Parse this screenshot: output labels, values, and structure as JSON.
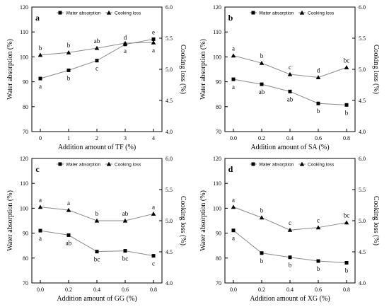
{
  "chart_data": [
    {
      "type": "line",
      "panel_label": "a",
      "xlabel": "Addition amount of TF (%)",
      "ylabel_left": "Water absorption (%)",
      "ylabel_right": "Cooking loss (%)",
      "x": [
        0,
        1,
        2,
        3,
        4
      ],
      "xticks": [
        "0",
        "1",
        "2",
        "3",
        "4"
      ],
      "xlim": [
        -0.3,
        4.3
      ],
      "ylim_left": [
        70,
        120
      ],
      "yticks_left": [
        "70",
        "80",
        "90",
        "100",
        "110",
        "120"
      ],
      "ylim_right": [
        4.0,
        6.0
      ],
      "yticks_right": [
        "4.0",
        "4.5",
        "5.0",
        "5.5",
        "6.0"
      ],
      "legend": "top",
      "series": [
        {
          "name": "Water absorption",
          "axis": "left",
          "marker": "square",
          "values": [
            91.3,
            94.6,
            98.5,
            105.0,
            107.1
          ],
          "letters": [
            "a",
            "b",
            "c",
            "d",
            "e"
          ],
          "letter_pos": [
            "below",
            "below",
            "below",
            "above",
            "above"
          ]
        },
        {
          "name": "Cooking loss",
          "axis": "right",
          "marker": "triangle",
          "values": [
            5.23,
            5.27,
            5.34,
            5.42,
            5.43
          ],
          "letters": [
            "b",
            "b",
            "ab",
            "a",
            "a"
          ],
          "letter_pos": [
            "above",
            "above",
            "above",
            "below",
            "below"
          ]
        }
      ]
    },
    {
      "type": "line",
      "panel_label": "b",
      "xlabel": "Addition amount of SA (%)",
      "ylabel_left": "Water absorption (%)",
      "ylabel_right": "Cooking loss (%)",
      "x": [
        0.0,
        0.2,
        0.4,
        0.6,
        0.8
      ],
      "xticks": [
        "0.0",
        "0.2",
        "0.4",
        "0.6",
        "0.8"
      ],
      "xlim": [
        -0.06,
        0.86
      ],
      "ylim_left": [
        70,
        120
      ],
      "yticks_left": [
        "70",
        "80",
        "90",
        "100",
        "110",
        "120"
      ],
      "ylim_right": [
        4.0,
        6.0
      ],
      "yticks_right": [
        "4.0",
        "4.5",
        "5.0",
        "5.5",
        "6.0"
      ],
      "legend": "top",
      "series": [
        {
          "name": "Water absorption",
          "axis": "left",
          "marker": "square",
          "values": [
            91.0,
            89.0,
            86.1,
            81.3,
            80.7
          ],
          "letters": [
            "a",
            "ab",
            "ab",
            "b",
            "b"
          ],
          "letter_pos": [
            "below",
            "below",
            "below",
            "below",
            "below"
          ]
        },
        {
          "name": "Cooking loss",
          "axis": "right",
          "marker": "triangle",
          "values": [
            5.22,
            5.1,
            4.92,
            4.87,
            5.03
          ],
          "letters": [
            "a",
            "b",
            "c",
            "d",
            "bc"
          ],
          "letter_pos": [
            "above",
            "above",
            "above",
            "above",
            "above"
          ]
        }
      ]
    },
    {
      "type": "line",
      "panel_label": "c",
      "xlabel": "Addition amount of GG (%)",
      "ylabel_left": "Water absorption (%)",
      "ylabel_right": "Cooking loss (%)",
      "x": [
        0.0,
        0.2,
        0.4,
        0.6,
        0.8
      ],
      "xticks": [
        "0.0",
        "0.2",
        "0.4",
        "0.6",
        "0.8"
      ],
      "xlim": [
        -0.06,
        0.86
      ],
      "ylim_left": [
        70,
        120
      ],
      "yticks_left": [
        "70",
        "80",
        "90",
        "100",
        "110",
        "120"
      ],
      "ylim_right": [
        4.0,
        6.0
      ],
      "yticks_right": [
        "4.0",
        "4.5",
        "5.0",
        "5.5",
        "6.0"
      ],
      "legend": "top",
      "series": [
        {
          "name": "Water absorption",
          "axis": "left",
          "marker": "square",
          "values": [
            91.0,
            89.2,
            82.6,
            82.9,
            80.9
          ],
          "letters": [
            "a",
            "ab",
            "bc",
            "bc",
            "c"
          ],
          "letter_pos": [
            "below",
            "below",
            "below",
            "below",
            "below"
          ]
        },
        {
          "name": "Cooking loss",
          "axis": "right",
          "marker": "triangle",
          "values": [
            5.22,
            5.17,
            5.0,
            5.0,
            5.11
          ],
          "letters": [
            "a",
            "a",
            "b",
            "ab",
            "a"
          ],
          "letter_pos": [
            "above",
            "above",
            "above",
            "above",
            "above"
          ]
        }
      ]
    },
    {
      "type": "line",
      "panel_label": "d",
      "xlabel": "Addition amount of XG (%)",
      "ylabel_left": "Water absorption (%)",
      "ylabel_right": "Cooking loss (%)",
      "x": [
        0.0,
        0.2,
        0.4,
        0.6,
        0.8
      ],
      "xticks": [
        "0.0",
        "0.2",
        "0.4",
        "0.6",
        "0.8"
      ],
      "xlim": [
        -0.06,
        0.86
      ],
      "ylim_left": [
        70,
        120
      ],
      "yticks_left": [
        "70",
        "80",
        "90",
        "100",
        "110",
        "120"
      ],
      "ylim_right": [
        4.0,
        6.0
      ],
      "yticks_right": [
        "4.0",
        "4.5",
        "5.0",
        "5.5",
        "6.0"
      ],
      "legend": "top",
      "series": [
        {
          "name": "Water absorption",
          "axis": "left",
          "marker": "square",
          "values": [
            91.1,
            82.0,
            80.3,
            78.8,
            78.1
          ],
          "letters": [
            "a",
            "b",
            "b",
            "b",
            "b"
          ],
          "letter_pos": [
            "below",
            "below",
            "below",
            "below",
            "below"
          ]
        },
        {
          "name": "Cooking loss",
          "axis": "right",
          "marker": "triangle",
          "values": [
            5.22,
            5.05,
            4.85,
            4.89,
            4.97
          ],
          "letters": [
            "a",
            "b",
            "c",
            "c",
            "bc"
          ],
          "letter_pos": [
            "above",
            "above",
            "above",
            "above",
            "above"
          ]
        }
      ]
    }
  ]
}
